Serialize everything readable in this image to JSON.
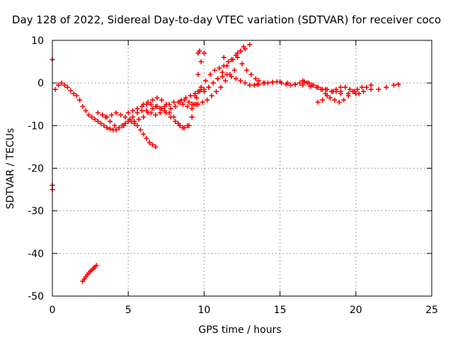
{
  "chart_data": {
    "type": "scatter",
    "title": "Day 128 of 2022, Sidereal Day-to-day VTEC variation (SDTVAR) for receiver coco",
    "xlabel": "GPS time / hours",
    "ylabel": "SDTVAR / TECUs",
    "xlim": [
      0,
      25
    ],
    "ylim": [
      -50,
      10
    ],
    "xticks": [
      0,
      5,
      10,
      15,
      20,
      25
    ],
    "yticks": [
      -50,
      -40,
      -30,
      -20,
      -10,
      0,
      10
    ],
    "grid": true,
    "marker_color": "#ff0000",
    "grid_color": "#a0a0a0",
    "series": [
      {
        "name": "s1",
        "x": [
          0.2,
          0.4,
          0.6,
          0.8,
          1.0,
          1.2,
          1.4,
          1.6,
          1.8,
          2.0,
          2.2,
          2.4,
          2.6,
          2.8,
          3.0,
          3.2,
          3.4,
          3.6,
          3.8,
          4.0,
          4.2,
          4.4,
          4.6,
          4.8,
          5.0,
          5.2,
          5.4,
          5.6,
          5.8,
          6.0,
          6.2,
          6.4,
          6.6,
          6.8
        ],
        "y": [
          -1.5,
          -0.5,
          0.0,
          -0.5,
          -1.0,
          -1.8,
          -2.5,
          -3.0,
          -4.0,
          -5.5,
          -6.5,
          -7.5,
          -8.0,
          -8.5,
          -9.0,
          -9.5,
          -10.0,
          -10.5,
          -10.8,
          -11.0,
          -11.0,
          -10.5,
          -10.0,
          -9.5,
          -9.0,
          -9.0,
          -9.5,
          -10.0,
          -11.0,
          -12.0,
          -13.0,
          -14.0,
          -14.5,
          -15.0
        ]
      },
      {
        "name": "s2",
        "x": [
          3.0,
          3.3,
          3.6,
          3.9,
          4.2,
          4.5,
          4.8,
          5.1,
          5.4,
          5.7,
          6.0,
          6.3,
          6.6,
          6.9,
          7.2,
          7.5,
          7.8,
          8.1,
          8.4,
          8.7,
          9.0,
          9.2,
          9.4,
          9.6
        ],
        "y": [
          -7.0,
          -7.5,
          -8.0,
          -7.5,
          -7.0,
          -7.5,
          -8.0,
          -8.5,
          -9.0,
          -8.5,
          -8.0,
          -7.0,
          -6.0,
          -5.5,
          -6.0,
          -7.0,
          -8.0,
          -9.0,
          -10.0,
          -10.5,
          -10.0,
          -8.0,
          -5.0,
          -2.0
        ]
      },
      {
        "name": "s3",
        "x": [
          3.5,
          3.8,
          4.1,
          4.4,
          4.7,
          5.0,
          5.3,
          5.6,
          5.9,
          6.2,
          6.5,
          6.8,
          7.1,
          7.4,
          7.7,
          8.0,
          8.3,
          8.6,
          8.9,
          9.2,
          9.5,
          9.8
        ],
        "y": [
          -8.0,
          -9.0,
          -10.0,
          -10.5,
          -10.0,
          -9.0,
          -8.0,
          -7.0,
          -6.5,
          -6.5,
          -7.0,
          -7.5,
          -7.0,
          -6.5,
          -7.0,
          -8.0,
          -9.5,
          -10.5,
          -10.0,
          -8.0,
          -5.0,
          -1.0
        ]
      },
      {
        "name": "s4",
        "x": [
          5.0,
          5.3,
          5.6,
          5.9,
          6.2,
          6.5,
          6.8,
          7.1,
          7.4,
          7.7,
          8.0,
          8.3,
          8.6,
          8.9,
          9.2,
          9.4,
          9.6,
          9.8,
          10.0
        ],
        "y": [
          -7.0,
          -6.5,
          -6.0,
          -5.5,
          -5.0,
          -5.0,
          -5.5,
          -6.0,
          -5.5,
          -5.0,
          -4.5,
          -4.5,
          -5.0,
          -5.5,
          -6.0,
          -3.0,
          2.0,
          5.0,
          7.0
        ]
      },
      {
        "name": "s5",
        "x": [
          6.0,
          6.3,
          6.6,
          6.9,
          7.2,
          7.5,
          7.8,
          8.1,
          8.4,
          8.7,
          9.0,
          9.3,
          9.6,
          9.9,
          10.2,
          10.5,
          10.8,
          11.1,
          11.4,
          11.7,
          12.0
        ],
        "y": [
          -5.0,
          -4.5,
          -4.0,
          -3.5,
          -4.0,
          -5.0,
          -6.0,
          -5.5,
          -4.5,
          -4.0,
          -4.5,
          -5.0,
          -5.0,
          -4.5,
          -4.0,
          -3.0,
          -2.0,
          -1.0,
          0.5,
          2.0,
          3.0
        ]
      },
      {
        "name": "s6",
        "x": [
          8.5,
          8.8,
          9.1,
          9.4,
          9.7,
          10.0,
          10.3,
          10.6,
          10.9,
          11.2,
          11.5,
          11.8,
          12.1,
          12.4,
          12.7,
          13.0
        ],
        "y": [
          -4.0,
          -3.5,
          -3.0,
          -2.5,
          -2.0,
          -1.5,
          -1.0,
          0.0,
          1.0,
          2.5,
          4.0,
          5.5,
          6.5,
          7.5,
          8.0,
          9.0
        ]
      },
      {
        "name": "s7",
        "x": [
          9.2,
          9.5,
          9.8,
          10.1,
          10.4,
          10.7,
          11.0,
          11.3,
          11.6,
          11.9,
          12.2,
          12.5,
          12.8,
          13.1,
          13.4,
          13.6
        ],
        "y": [
          -5.0,
          -3.5,
          -1.5,
          0.5,
          2.0,
          3.0,
          3.5,
          4.0,
          5.0,
          5.5,
          6.0,
          4.5,
          3.0,
          2.0,
          1.0,
          0.5
        ]
      },
      {
        "name": "s8",
        "x": [
          10.0,
          10.3,
          10.6,
          10.9,
          11.2,
          11.5,
          11.8,
          12.1,
          12.4,
          12.7,
          13.0,
          13.3,
          13.6,
          13.9,
          14.2,
          14.5,
          14.8,
          15.1,
          15.4,
          15.7,
          16.0,
          16.3,
          16.6,
          16.9,
          17.2,
          17.5,
          17.8,
          18.1,
          18.4,
          18.7,
          19.0
        ],
        "y": [
          -2.0,
          -1.0,
          0.0,
          1.0,
          1.5,
          2.0,
          1.5,
          1.0,
          0.5,
          0.0,
          -0.5,
          -0.5,
          -0.3,
          0.0,
          0.0,
          0.2,
          0.3,
          0.0,
          -0.3,
          -0.5,
          -0.3,
          0.0,
          0.3,
          0.0,
          -0.5,
          -1.0,
          -1.5,
          -1.5,
          -2.0,
          -2.0,
          -2.5
        ]
      },
      {
        "name": "s9",
        "x": [
          13.0,
          13.5,
          14.0,
          14.5,
          15.0,
          15.5,
          16.0,
          16.5,
          17.0,
          17.5,
          18.0,
          18.5,
          19.0,
          19.5,
          20.0,
          20.5,
          21.0,
          21.5,
          22.0,
          22.5,
          22.8
        ],
        "y": [
          -0.5,
          -0.3,
          0.0,
          0.2,
          0.3,
          0.0,
          -0.3,
          -0.5,
          -0.8,
          -1.0,
          -1.5,
          -2.0,
          -2.0,
          -2.5,
          -2.5,
          -2.0,
          -1.5,
          -1.5,
          -1.0,
          -0.5,
          -0.3
        ]
      },
      {
        "name": "s10",
        "x": [
          16.5,
          16.8,
          17.1,
          17.4,
          17.7,
          18.0,
          18.3,
          18.6,
          18.9,
          19.2,
          19.5,
          19.8,
          20.1,
          20.4,
          20.7,
          21.0
        ],
        "y": [
          0.5,
          0.0,
          -0.5,
          -1.0,
          -1.5,
          -2.5,
          -3.5,
          -4.0,
          -4.5,
          -4.0,
          -3.0,
          -2.0,
          -1.5,
          -1.0,
          -1.0,
          -0.5
        ]
      },
      {
        "name": "s11",
        "x": [
          17.5,
          17.8,
          18.1,
          18.4,
          18.7,
          19.0,
          19.3,
          19.6,
          19.9,
          20.2
        ],
        "y": [
          -4.5,
          -4.0,
          -3.0,
          -2.0,
          -1.5,
          -1.0,
          -1.0,
          -1.5,
          -2.0,
          -2.5
        ]
      },
      {
        "name": "s12",
        "x": [
          2.0,
          2.1,
          2.2,
          2.3,
          2.4,
          2.5,
          2.6,
          2.7,
          2.8,
          2.9
        ],
        "y": [
          -46.5,
          -46.0,
          -45.5,
          -45.0,
          -44.6,
          -44.2,
          -43.9,
          -43.5,
          -43.2,
          -42.8
        ]
      },
      {
        "name": "s13",
        "x": [
          0.0,
          0.0,
          0.0
        ],
        "y": [
          5.5,
          -24.0,
          -25.0
        ]
      },
      {
        "name": "s14",
        "x": [
          9.6,
          9.7,
          11.3,
          12.2,
          12.4,
          12.6
        ],
        "y": [
          7.0,
          7.5,
          6.0,
          7.0,
          7.5,
          8.5
        ]
      }
    ]
  }
}
